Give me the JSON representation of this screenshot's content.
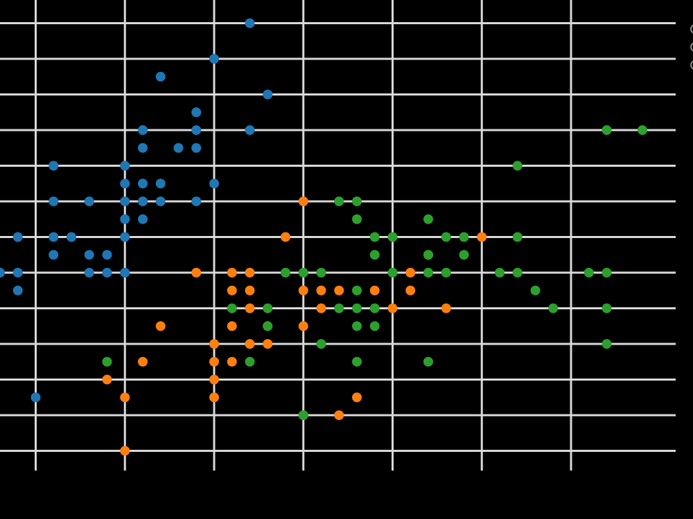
{
  "chart_data": {
    "type": "scatter",
    "title": "",
    "xlabel": "",
    "ylabel": "",
    "xlim": [
      4.3,
      7.9
    ],
    "ylim": [
      1.9,
      4.5
    ],
    "x_ticks": [
      4.5,
      5.0,
      5.5,
      6.0,
      6.5,
      7.0,
      7.5
    ],
    "y_ticks": [
      2.0,
      2.2,
      2.4,
      2.6,
      2.8,
      3.0,
      3.2,
      3.4,
      3.6,
      3.8,
      4.0,
      4.2,
      4.4
    ],
    "grid": true,
    "legend_position": "right",
    "series": [
      {
        "color": "#1f77b4",
        "points": [
          [
            4.3,
            3.0
          ],
          [
            4.4,
            2.9
          ],
          [
            4.4,
            3.0
          ],
          [
            4.4,
            3.2
          ],
          [
            4.5,
            2.3
          ],
          [
            4.6,
            3.1
          ],
          [
            4.6,
            3.2
          ],
          [
            4.6,
            3.4
          ],
          [
            4.6,
            3.6
          ],
          [
            4.7,
            3.2
          ],
          [
            4.8,
            3.0
          ],
          [
            4.8,
            3.1
          ],
          [
            4.8,
            3.4
          ],
          [
            4.9,
            3.0
          ],
          [
            4.9,
            3.1
          ],
          [
            5.0,
            3.0
          ],
          [
            5.0,
            3.2
          ],
          [
            5.0,
            3.3
          ],
          [
            5.0,
            3.4
          ],
          [
            5.0,
            3.5
          ],
          [
            5.0,
            3.6
          ],
          [
            5.1,
            3.3
          ],
          [
            5.1,
            3.4
          ],
          [
            5.1,
            3.5
          ],
          [
            5.1,
            3.7
          ],
          [
            5.1,
            3.8
          ],
          [
            5.2,
            3.4
          ],
          [
            5.2,
            3.5
          ],
          [
            5.2,
            4.1
          ],
          [
            5.3,
            3.7
          ],
          [
            5.4,
            3.4
          ],
          [
            5.4,
            3.7
          ],
          [
            5.4,
            3.8
          ],
          [
            5.4,
            3.9
          ],
          [
            5.5,
            3.5
          ],
          [
            5.5,
            4.2
          ],
          [
            5.7,
            3.8
          ],
          [
            5.7,
            4.4
          ],
          [
            5.8,
            4.0
          ]
        ]
      },
      {
        "color": "#ff7f0e",
        "points": [
          [
            4.9,
            2.4
          ],
          [
            5.0,
            2.0
          ],
          [
            5.0,
            2.3
          ],
          [
            5.1,
            2.5
          ],
          [
            5.2,
            2.7
          ],
          [
            5.4,
            3.0
          ],
          [
            5.5,
            2.3
          ],
          [
            5.5,
            2.4
          ],
          [
            5.5,
            2.5
          ],
          [
            5.5,
            2.6
          ],
          [
            5.6,
            2.5
          ],
          [
            5.6,
            2.7
          ],
          [
            5.6,
            2.9
          ],
          [
            5.6,
            3.0
          ],
          [
            5.7,
            2.6
          ],
          [
            5.7,
            2.8
          ],
          [
            5.7,
            2.9
          ],
          [
            5.7,
            3.0
          ],
          [
            5.8,
            2.6
          ],
          [
            5.8,
            2.7
          ],
          [
            5.9,
            3.2
          ],
          [
            6.0,
            2.2
          ],
          [
            6.0,
            2.7
          ],
          [
            6.0,
            2.9
          ],
          [
            6.0,
            3.4
          ],
          [
            6.1,
            2.8
          ],
          [
            6.1,
            2.9
          ],
          [
            6.2,
            2.2
          ],
          [
            6.2,
            2.9
          ],
          [
            6.3,
            2.3
          ],
          [
            6.4,
            2.9
          ],
          [
            6.5,
            2.8
          ],
          [
            6.6,
            2.9
          ],
          [
            6.6,
            3.0
          ],
          [
            6.7,
            3.1
          ],
          [
            6.8,
            2.8
          ],
          [
            7.0,
            3.2
          ]
        ]
      },
      {
        "color": "#2ca02c",
        "points": [
          [
            4.9,
            2.5
          ],
          [
            5.6,
            2.8
          ],
          [
            5.7,
            2.5
          ],
          [
            5.8,
            2.7
          ],
          [
            5.8,
            2.8
          ],
          [
            5.9,
            3.0
          ],
          [
            6.0,
            2.2
          ],
          [
            6.0,
            3.0
          ],
          [
            6.1,
            2.6
          ],
          [
            6.1,
            3.0
          ],
          [
            6.2,
            2.8
          ],
          [
            6.2,
            3.4
          ],
          [
            6.3,
            2.5
          ],
          [
            6.3,
            2.7
          ],
          [
            6.3,
            2.8
          ],
          [
            6.3,
            2.9
          ],
          [
            6.3,
            3.3
          ],
          [
            6.3,
            3.4
          ],
          [
            6.4,
            2.7
          ],
          [
            6.4,
            2.8
          ],
          [
            6.4,
            3.1
          ],
          [
            6.4,
            3.2
          ],
          [
            6.5,
            3.0
          ],
          [
            6.5,
            3.2
          ],
          [
            6.7,
            2.5
          ],
          [
            6.7,
            3.0
          ],
          [
            6.7,
            3.1
          ],
          [
            6.7,
            3.3
          ],
          [
            6.8,
            3.0
          ],
          [
            6.8,
            3.2
          ],
          [
            6.9,
            3.1
          ],
          [
            6.9,
            3.2
          ],
          [
            7.1,
            3.0
          ],
          [
            7.2,
            3.0
          ],
          [
            7.2,
            3.2
          ],
          [
            7.2,
            3.6
          ],
          [
            7.3,
            2.9
          ],
          [
            7.4,
            2.8
          ],
          [
            7.6,
            3.0
          ],
          [
            7.7,
            2.6
          ],
          [
            7.7,
            2.8
          ],
          [
            7.7,
            3.0
          ],
          [
            7.7,
            3.8
          ],
          [
            7.9,
            3.8
          ]
        ]
      }
    ]
  }
}
